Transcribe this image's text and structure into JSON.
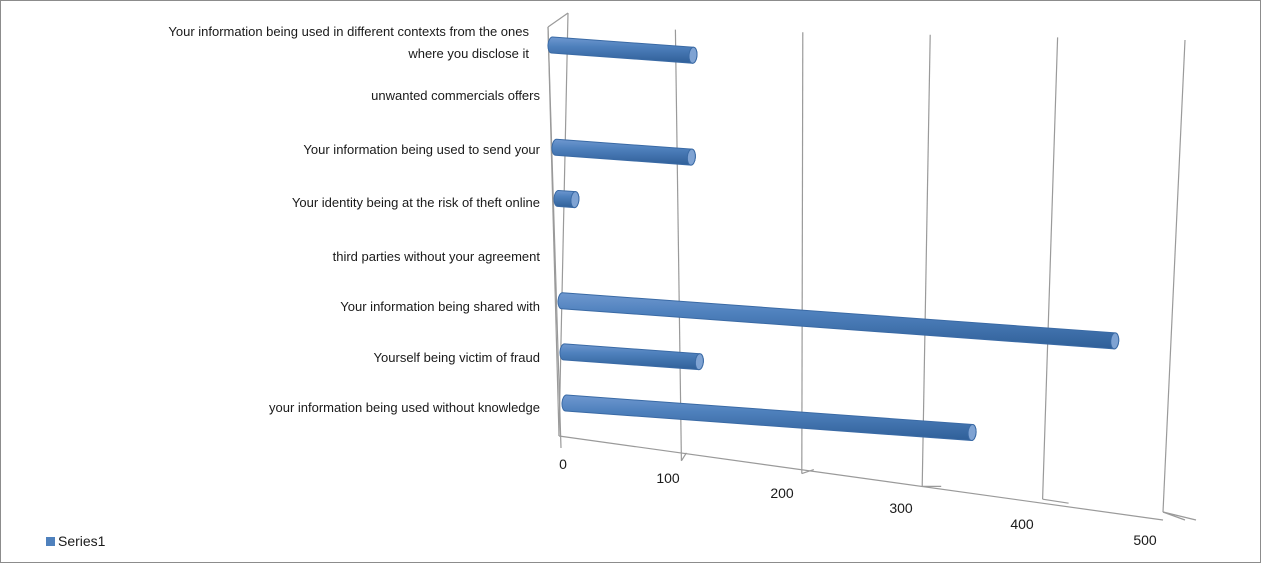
{
  "chart_data": {
    "type": "bar",
    "orientation": "horizontal",
    "style": "3d-cylinder",
    "categories": [
      "your information being used without knowledge",
      "Yourself being victim of fraud",
      "Your information being shared with",
      "third parties without your agreement",
      "Your identity being at the risk of theft online",
      "Your information being used to send your",
      "unwanted commercials offers",
      "Your information being used in different contexts  from the ones where you disclose it"
    ],
    "label_lines": [
      [
        "your information being used without knowledge"
      ],
      [
        "Yourself being victim of fraud"
      ],
      [
        "Your information being shared with"
      ],
      [
        "third parties without your agreement"
      ],
      [
        "Your identity being at the risk of theft online"
      ],
      [
        "Your information being used to send your"
      ],
      [
        "unwanted commercials offers"
      ],
      [
        "Your information being used in different contexts  from the ones",
        "where you disclose it"
      ]
    ],
    "series": [
      {
        "name": "Series1",
        "values": [
          360,
          120,
          490,
          0,
          15,
          120,
          0,
          125
        ]
      }
    ],
    "xlim": [
      0,
      500
    ],
    "xticks": [
      0,
      100,
      200,
      300,
      400,
      500
    ],
    "gridlines": true,
    "legend": "bottom-left",
    "colors": {
      "bar": "#4f81bd",
      "bar_edge": "#3a6aa5",
      "cap": "#7fa3d3",
      "grid": "#9a9a9a"
    }
  },
  "legend": {
    "label": "Series1"
  }
}
